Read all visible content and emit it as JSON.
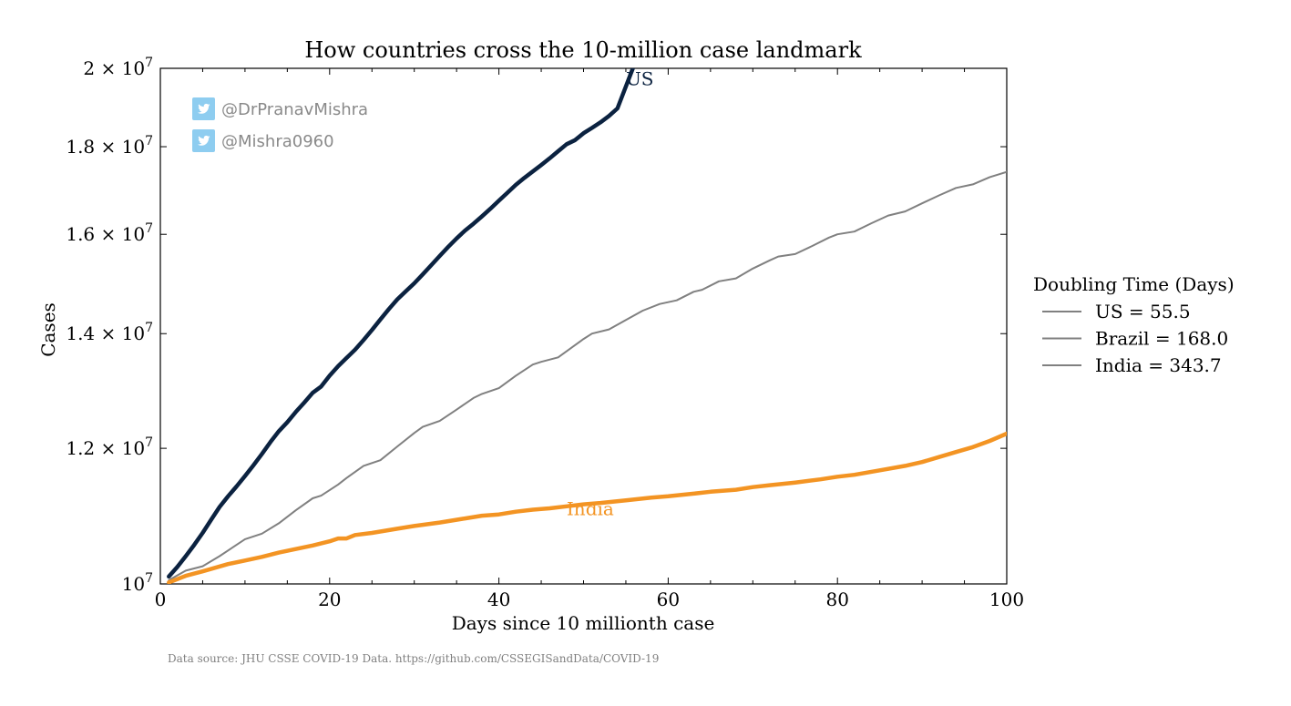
{
  "chart_data": {
    "type": "line",
    "title": "How countries cross the 10-million case landmark",
    "xlabel": "Days since 10 millionth case",
    "ylabel": "Cases",
    "xlim": [
      0,
      100
    ],
    "ylim": [
      10000000,
      20000000
    ],
    "yscale": "log",
    "grid": false,
    "x_ticks": [
      "0",
      "20",
      "40",
      "60",
      "80",
      "100"
    ],
    "y_ticks": [
      {
        "value": 10000000,
        "mantissa": "",
        "exp": "7"
      },
      {
        "value": 12000000,
        "mantissa": "1.2",
        "exp": "7"
      },
      {
        "value": 14000000,
        "mantissa": "1.4",
        "exp": "7"
      },
      {
        "value": 16000000,
        "mantissa": "1.6",
        "exp": "7"
      },
      {
        "value": 18000000,
        "mantissa": "1.8",
        "exp": "7"
      },
      {
        "value": 20000000,
        "mantissa": "2",
        "exp": "7"
      }
    ],
    "series": [
      {
        "name": "US",
        "color": "#0b2240",
        "width": 4.5,
        "label_pos": [
          55,
          19550000
        ],
        "x": [
          1,
          2,
          3,
          4,
          5,
          6,
          7,
          8,
          9,
          10,
          11,
          12,
          13,
          14,
          15,
          16,
          17,
          18,
          19,
          20,
          21,
          22,
          23,
          24,
          25,
          26,
          27,
          28,
          29,
          30,
          31,
          32,
          33,
          34,
          35,
          36,
          37,
          38,
          39,
          40,
          41,
          42,
          43,
          44,
          45,
          46,
          47,
          48,
          49,
          50,
          51,
          52,
          53,
          54
        ],
        "y": [
          10100000,
          10230000,
          10380000,
          10540000,
          10710000,
          10900000,
          11090000,
          11250000,
          11400000,
          11560000,
          11730000,
          11910000,
          12100000,
          12280000,
          12430000,
          12600000,
          12760000,
          12930000,
          13040000,
          13230000,
          13400000,
          13550000,
          13700000,
          13880000,
          14070000,
          14270000,
          14470000,
          14660000,
          14820000,
          14980000,
          15160000,
          15350000,
          15540000,
          15730000,
          15910000,
          16080000,
          16230000,
          16390000,
          16560000,
          16740000,
          16920000,
          17100000,
          17260000,
          17410000,
          17560000,
          17720000,
          17890000,
          18060000,
          18160000,
          18330000,
          18460000,
          18600000,
          18760000,
          18950000
        ]
      },
      {
        "name": "Brazil",
        "color": "#808080",
        "width": 2,
        "x": [
          1,
          3,
          5,
          7,
          10,
          12,
          14,
          16,
          18,
          19,
          21,
          22,
          24,
          26,
          28,
          30,
          31,
          33,
          35,
          37,
          38,
          40,
          42,
          44,
          45,
          47,
          50,
          51,
          53,
          55,
          57,
          59,
          61,
          63,
          64,
          66,
          68,
          70,
          72,
          73,
          75,
          77,
          79,
          80,
          82,
          84,
          86,
          88,
          90,
          92,
          94,
          96,
          98,
          100
        ],
        "y": [
          10050000,
          10180000,
          10240000,
          10380000,
          10620000,
          10700000,
          10850000,
          11040000,
          11220000,
          11260000,
          11430000,
          11530000,
          11720000,
          11810000,
          12030000,
          12250000,
          12350000,
          12450000,
          12640000,
          12840000,
          12910000,
          13010000,
          13230000,
          13430000,
          13480000,
          13560000,
          13900000,
          14000000,
          14080000,
          14260000,
          14440000,
          14570000,
          14640000,
          14810000,
          14850000,
          15020000,
          15080000,
          15280000,
          15450000,
          15530000,
          15580000,
          15750000,
          15930000,
          16000000,
          16060000,
          16240000,
          16410000,
          16500000,
          16680000,
          16860000,
          17030000,
          17110000,
          17280000,
          17400000
        ]
      },
      {
        "name": "India",
        "color": "#f39423",
        "width": 4.5,
        "label_pos": [
          48,
          10970000
        ],
        "x": [
          1,
          3,
          5,
          8,
          10,
          12,
          14,
          16,
          18,
          20,
          21,
          22,
          23,
          25,
          28,
          30,
          33,
          36,
          38,
          40,
          42,
          44,
          46,
          48,
          50,
          52,
          55,
          58,
          60,
          63,
          65,
          68,
          70,
          72,
          75,
          78,
          80,
          82,
          85,
          88,
          90,
          92,
          94,
          96,
          98,
          100
        ],
        "y": [
          10020000,
          10110000,
          10170000,
          10270000,
          10320000,
          10370000,
          10430000,
          10480000,
          10530000,
          10590000,
          10630000,
          10630000,
          10680000,
          10710000,
          10770000,
          10810000,
          10860000,
          10920000,
          10960000,
          10980000,
          11020000,
          11050000,
          11070000,
          11100000,
          11130000,
          11150000,
          11190000,
          11230000,
          11250000,
          11290000,
          11320000,
          11350000,
          11390000,
          11420000,
          11460000,
          11510000,
          11550000,
          11580000,
          11650000,
          11720000,
          11780000,
          11860000,
          11940000,
          12020000,
          12120000,
          12240000
        ]
      }
    ],
    "legend": {
      "title": "Doubling Time (Days)",
      "placement": "right",
      "entries": [
        "US = 55.5",
        "Brazil = 168.0",
        "India = 343.7"
      ],
      "line_color": "#808080"
    }
  },
  "watermark": {
    "accounts": [
      "@DrPranavMishra",
      "@Mishra0960"
    ],
    "icon": "twitter-bird-icon",
    "icon_color": "#8ecdf0",
    "text_color": "#8a8a8a"
  },
  "source_note": "Data source: JHU CSSE COVID-19 Data. https://github.com/CSSEGISandData/COVID-19"
}
